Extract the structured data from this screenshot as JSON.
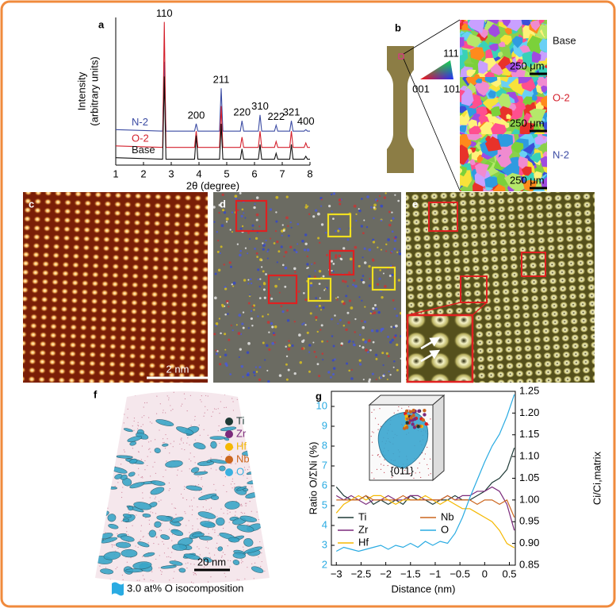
{
  "panel_labels": [
    "a",
    "b",
    "c",
    "d",
    "e",
    "f",
    "g"
  ],
  "chart_data": [
    {
      "type": "line",
      "xlabel": "2θ (degree)",
      "ylabel": [
        "Intensity",
        "(arbitrary units)"
      ],
      "x": [
        1,
        2.69,
        2.75,
        2.81,
        3.84,
        3.9,
        3.96,
        4.74,
        4.8,
        4.86,
        5.49,
        5.55,
        5.61,
        6.14,
        6.2,
        6.26,
        6.72,
        6.78,
        6.84,
        7.27,
        7.33,
        7.39,
        7.79,
        7.85,
        7.91,
        8
      ],
      "series": [
        {
          "name": "N-2",
          "color": "#3b4ba3",
          "values": [
            24,
            23,
            70,
            23,
            23,
            28,
            23,
            23,
            52,
            23,
            23,
            30,
            23,
            23,
            34,
            23,
            23,
            27,
            23,
            23,
            30,
            23,
            23,
            24,
            23,
            23
          ]
        },
        {
          "name": "O-2",
          "color": "#d4202c",
          "values": [
            13,
            12,
            97,
            12,
            12,
            23,
            12,
            12,
            40,
            12,
            12,
            19,
            12,
            12,
            23,
            12,
            12,
            16,
            12,
            12,
            23,
            12,
            12,
            15,
            12,
            12
          ]
        },
        {
          "name": "Base",
          "color": "#111111",
          "values": [
            5,
            4,
            60,
            4,
            4,
            20,
            4,
            4,
            28,
            4,
            4,
            11,
            4,
            4,
            14,
            4,
            4,
            8,
            4,
            4,
            14,
            4,
            4,
            6,
            4,
            4
          ]
        }
      ],
      "annotations": [
        {
          "text": "110",
          "x": 2.75
        },
        {
          "text": "200",
          "x": 3.9
        },
        {
          "text": "211",
          "x": 4.8
        },
        {
          "text": "220",
          "x": 5.55
        },
        {
          "text": "310",
          "x": 6.2
        },
        {
          "text": "222",
          "x": 6.78
        },
        {
          "text": "321",
          "x": 7.33
        },
        {
          "text": "400",
          "x": 7.85
        }
      ],
      "xlim": [
        1,
        8
      ],
      "xticks": [
        1,
        2,
        3,
        4,
        5,
        6,
        7,
        8
      ],
      "ylim": [
        0,
        100
      ],
      "legend": "inline"
    },
    {
      "type": "line",
      "xlabel": "Distance (nm)",
      "ylabel": "Ratio O/ΣNi (%)",
      "y2label": "Ci/Ci,matrix",
      "inset_label": "{011}",
      "x": [
        -3,
        -2.85,
        -2.7,
        -2.55,
        -2.4,
        -2.25,
        -2.1,
        -1.95,
        -1.8,
        -1.65,
        -1.5,
        -1.35,
        -1.2,
        -1.05,
        -0.9,
        -0.75,
        -0.6,
        -0.45,
        -0.3,
        -0.15,
        0,
        0.15,
        0.3,
        0.45,
        0.6
      ],
      "series": [
        {
          "name": "Ti",
          "color": "#1e3a36",
          "axis": "y2",
          "values": [
            1.03,
            1.01,
            1.0,
            1.0,
            1.01,
            0.99,
            1.0,
            0.99,
            1.0,
            0.99,
            1.01,
            1.0,
            1.0,
            0.99,
            1.0,
            1.0,
            1.01,
            1.0,
            1.0,
            1.01,
            1.02,
            1.04,
            1.05,
            1.07,
            1.12
          ]
        },
        {
          "name": "Zr",
          "color": "#7b2a7b",
          "axis": "y2",
          "values": [
            1.01,
            1.0,
            1.01,
            1.0,
            0.99,
            1.0,
            1.0,
            1.01,
            1.0,
            1.0,
            1.01,
            1.01,
            1.0,
            1.0,
            1.0,
            1.01,
            1.0,
            1.01,
            1.01,
            1.02,
            1.02,
            1.03,
            1.02,
            0.99,
            0.93
          ]
        },
        {
          "name": "Hf",
          "color": "#f5b800",
          "axis": "y2",
          "values": [
            0.97,
            0.99,
            1.0,
            1.01,
            1.0,
            1.01,
            1.01,
            1.0,
            0.99,
            1.0,
            1.0,
            1.0,
            1.01,
            1.0,
            0.99,
            1.0,
            0.99,
            0.98,
            0.98,
            0.97,
            0.96,
            0.95,
            0.93,
            0.9,
            0.89
          ]
        },
        {
          "name": "Nb",
          "color": "#cc661e",
          "axis": "y2",
          "values": [
            1.0,
            1.0,
            1.0,
            1.0,
            1.01,
            1.0,
            1.0,
            1.0,
            1.0,
            1.01,
            1.0,
            1.0,
            1.0,
            1.0,
            1.0,
            1.01,
            1.0,
            1.0,
            1.0,
            0.99,
            1.0,
            1.0,
            0.99,
            1.0,
            0.96
          ]
        },
        {
          "name": "O",
          "color": "#29abe2",
          "values": [
            2.7,
            2.9,
            2.8,
            2.7,
            2.8,
            2.9,
            3.0,
            2.8,
            3.0,
            2.9,
            3.1,
            2.9,
            3.2,
            3.0,
            3.2,
            3.1,
            3.6,
            4.4,
            5.4,
            6.3,
            7.2,
            8.0,
            8.6,
            9.5,
            10.6
          ]
        }
      ],
      "xlim": [
        -3.1,
        0.62
      ],
      "xticks": [
        {
          "value": -3,
          "label": "−3"
        },
        {
          "value": -2.5,
          "label": "−2.5"
        },
        {
          "value": -2,
          "label": "−2"
        },
        {
          "value": -1.5,
          "label": "−1.5"
        },
        {
          "value": -1,
          "label": "−1"
        },
        {
          "value": -0.5,
          "label": "−0.5"
        },
        0,
        0.5
      ],
      "ylim": [
        2,
        10.76
      ],
      "yticks": [
        2,
        3,
        4,
        5,
        6,
        7,
        8,
        9,
        10
      ],
      "ytick_color": "#29abe2",
      "y2lim": [
        0.85,
        1.25
      ],
      "y2ticks": [
        0.85,
        {
          "value": 0.9,
          "label": "0.90"
        },
        0.95,
        {
          "value": 1,
          "label": "1.00"
        },
        1.05,
        {
          "value": 1.1,
          "label": "1.10"
        },
        1.15,
        {
          "value": 1.2,
          "label": "1.20"
        },
        1.25
      ],
      "legend": "lower left"
    }
  ],
  "ebsd": {
    "ipf_labels": [
      "111",
      "001",
      "101"
    ],
    "maps": [
      {
        "label": "Base",
        "color": "#111111",
        "scale": "250 μm"
      },
      {
        "label": "O-2",
        "color": "#d4202c",
        "scale": "250 μm"
      },
      {
        "label": "N-2",
        "color": "#3b4ba3",
        "scale": "250 μm"
      }
    ]
  },
  "hrtem": {
    "scale": "2 nm"
  },
  "apt": {
    "legend": [
      {
        "name": "Ti",
        "color": "#1e3a36"
      },
      {
        "name": "Zr",
        "color": "#7b2a7b"
      },
      {
        "name": "Hf",
        "color": "#f5b800"
      },
      {
        "name": "Nb",
        "color": "#cc661e"
      },
      {
        "name": "O",
        "color": "#3ab0e0"
      }
    ],
    "scale": "20 nm",
    "isosurface": "3.0 at% O isocomposition"
  }
}
